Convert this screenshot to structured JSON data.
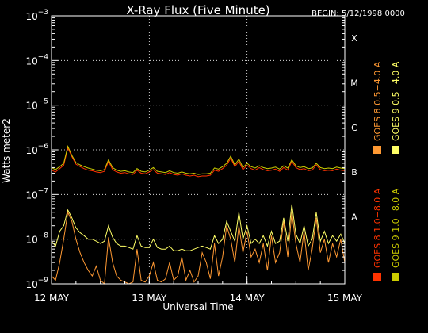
{
  "chart_data": {
    "type": "line",
    "title": "X-Ray Flux (Five Minute)",
    "begin_label": "BEGIN: 5/12/1998 0000",
    "ylabel": "Watts meter2",
    "xlabel": "Universal Time",
    "y_scale": "log",
    "ylim": [
      1e-09,
      0.001
    ],
    "y_ticks": [
      {
        "base": "10",
        "exp": "−3",
        "value": 0.001
      },
      {
        "base": "10",
        "exp": "−4",
        "value": 0.0001
      },
      {
        "base": "10",
        "exp": "−5",
        "value": 1e-05
      },
      {
        "base": "10",
        "exp": "−6",
        "value": 1e-06
      },
      {
        "base": "10",
        "exp": "−7",
        "value": 1e-07
      },
      {
        "base": "10",
        "exp": "−8",
        "value": 1e-08
      },
      {
        "base": "10",
        "exp": "−9",
        "value": 1e-09
      }
    ],
    "xlim": [
      0,
      72
    ],
    "x_unit": "hours since 12 May 1998 00:00",
    "x_ticks": [
      {
        "label": "12 MAY",
        "value": 0
      },
      {
        "label": "13 MAY",
        "value": 24
      },
      {
        "label": "14 MAY",
        "value": 48
      },
      {
        "label": "15 MAY",
        "value": 72
      }
    ],
    "flare_classes": [
      {
        "label": "X",
        "value": 0.0001
      },
      {
        "label": "M",
        "value": 1e-05
      },
      {
        "label": "C",
        "value": 1e-06
      },
      {
        "label": "B",
        "value": 1e-07
      },
      {
        "label": "A",
        "value": 1e-08
      }
    ],
    "grid": true,
    "legend_position": "right (vertical)",
    "series": [
      {
        "name": "GOES 8 1.0−8.0 A",
        "color": "#ff3300",
        "x": [
          0,
          1,
          2,
          3,
          4,
          5,
          6,
          7,
          8,
          9,
          10,
          11,
          12,
          13,
          14,
          15,
          16,
          17,
          18,
          19,
          20,
          21,
          22,
          23,
          24,
          25,
          26,
          27,
          28,
          29,
          30,
          31,
          32,
          33,
          34,
          35,
          36,
          37,
          38,
          39,
          40,
          41,
          42,
          43,
          44,
          45,
          46,
          47,
          48,
          49,
          50,
          51,
          52,
          53,
          54,
          55,
          56,
          57,
          58,
          59,
          60,
          61,
          62,
          63,
          64,
          65,
          66,
          67,
          68,
          69,
          70,
          71,
          72
        ],
        "y": [
          3.5e-07,
          3.2e-07,
          3.8e-07,
          4.5e-07,
          1.1e-06,
          7e-07,
          4.8e-07,
          4.2e-07,
          3.8e-07,
          3.5e-07,
          3.4e-07,
          3.2e-07,
          3.1e-07,
          3.3e-07,
          5.5e-07,
          3.6e-07,
          3.2e-07,
          3e-07,
          3.1e-07,
          2.9e-07,
          2.8e-07,
          3.5e-07,
          3e-07,
          2.9e-07,
          3.2e-07,
          3.6e-07,
          3e-07,
          2.9e-07,
          2.8e-07,
          3.1e-07,
          2.8e-07,
          2.7e-07,
          2.9e-07,
          2.7e-07,
          2.6e-07,
          2.7e-07,
          2.5e-07,
          2.6e-07,
          2.6e-07,
          2.7e-07,
          3.5e-07,
          3.3e-07,
          3.8e-07,
          4.5e-07,
          6.5e-07,
          4.2e-07,
          5.5e-07,
          3.6e-07,
          4.5e-07,
          3.8e-07,
          3.5e-07,
          4e-07,
          3.6e-07,
          3.4e-07,
          3.5e-07,
          3.7e-07,
          3.3e-07,
          4e-07,
          3.5e-07,
          5.5e-07,
          4e-07,
          3.6e-07,
          3.8e-07,
          3.4e-07,
          3.5e-07,
          4.6e-07,
          3.6e-07,
          3.4e-07,
          3.5e-07,
          3.4e-07,
          3.7e-07,
          3.5e-07,
          3.4e-07
        ]
      },
      {
        "name": "GOES 8 0.5−4.0 A",
        "color": "#ff9933",
        "x": [
          0,
          1,
          2,
          3,
          4,
          5,
          6,
          7,
          8,
          9,
          10,
          11,
          12,
          13,
          14,
          15,
          16,
          17,
          18,
          19,
          20,
          21,
          22,
          23,
          24,
          25,
          26,
          27,
          28,
          29,
          30,
          31,
          32,
          33,
          34,
          35,
          36,
          37,
          38,
          39,
          40,
          41,
          42,
          43,
          44,
          45,
          46,
          47,
          48,
          49,
          50,
          51,
          52,
          53,
          54,
          55,
          56,
          57,
          58,
          59,
          60,
          61,
          62,
          63,
          64,
          65,
          66,
          67,
          68,
          69,
          70,
          71,
          72
        ],
        "y": [
          1.5e-09,
          1.2e-09,
          3e-09,
          1e-08,
          4e-08,
          2.5e-08,
          1e-08,
          5e-09,
          3e-09,
          2e-09,
          1.5e-09,
          2.5e-09,
          1.2e-09,
          1e-09,
          1.1e-08,
          3e-09,
          1.5e-09,
          1.2e-09,
          1.1e-09,
          1e-09,
          1.1e-09,
          6e-09,
          1.2e-09,
          1.1e-09,
          1.5e-09,
          3e-09,
          1.2e-09,
          1.1e-09,
          1.3e-09,
          3e-09,
          1.2e-09,
          1.5e-09,
          4e-09,
          1.2e-09,
          2e-09,
          1.1e-09,
          1.5e-09,
          5e-09,
          3e-09,
          1.3e-09,
          8e-09,
          1.5e-09,
          4e-09,
          2e-08,
          1e-08,
          3e-09,
          2e-08,
          5e-09,
          1.5e-08,
          4e-09,
          6e-09,
          3e-09,
          8e-09,
          2e-09,
          1.2e-08,
          3e-09,
          5e-09,
          2.5e-08,
          4e-09,
          4e-08,
          8e-09,
          3e-09,
          1.5e-08,
          2e-09,
          6e-09,
          3e-08,
          5e-09,
          1e-08,
          3e-09,
          8e-09,
          4e-09,
          1e-08,
          3e-09
        ]
      },
      {
        "name": "GOES 9 0.5−4.0 A",
        "color": "#ffff66",
        "x": [
          0,
          1,
          2,
          3,
          4,
          5,
          6,
          7,
          8,
          9,
          10,
          11,
          12,
          13,
          14,
          15,
          16,
          17,
          18,
          19,
          20,
          21,
          22,
          23,
          24,
          25,
          26,
          27,
          28,
          29,
          30,
          31,
          32,
          33,
          34,
          35,
          36,
          37,
          38,
          39,
          40,
          41,
          42,
          43,
          44,
          45,
          46,
          47,
          48,
          49,
          50,
          51,
          52,
          53,
          54,
          55,
          56,
          57,
          58,
          59,
          60,
          61,
          62,
          63,
          64,
          65,
          66,
          67,
          68,
          69,
          70,
          71,
          72
        ],
        "y": [
          9e-09,
          7e-09,
          1.5e-08,
          2e-08,
          4.5e-08,
          3e-08,
          1.8e-08,
          1.4e-08,
          1.2e-08,
          1e-08,
          1e-08,
          9e-09,
          8e-09,
          9e-09,
          2e-08,
          1.1e-08,
          8e-09,
          7e-09,
          7e-09,
          6.5e-09,
          6e-09,
          1.2e-08,
          7e-09,
          6.5e-09,
          6.5e-09,
          1e-08,
          6.5e-09,
          6e-09,
          6e-09,
          7e-09,
          5.5e-09,
          5.5e-09,
          6e-09,
          5.5e-09,
          5.5e-09,
          6e-09,
          6.5e-09,
          7e-09,
          6.5e-09,
          6e-09,
          1.2e-08,
          8e-09,
          1e-08,
          2.5e-08,
          1.5e-08,
          9e-09,
          4e-08,
          1e-08,
          2e-08,
          8e-09,
          1e-08,
          8e-09,
          1.2e-08,
          7e-09,
          1.5e-08,
          8e-09,
          9e-09,
          3e-08,
          9e-09,
          6e-08,
          1.3e-08,
          8e-09,
          2e-08,
          7e-09,
          1e-08,
          4e-08,
          9e-09,
          1.5e-08,
          8e-09,
          1.2e-08,
          9e-09,
          1.3e-08,
          8e-09
        ]
      },
      {
        "name": "GOES 9 1.0−8.0 A",
        "color": "#cccc00",
        "x": [
          0,
          1,
          2,
          3,
          4,
          5,
          6,
          7,
          8,
          9,
          10,
          11,
          12,
          13,
          14,
          15,
          16,
          17,
          18,
          19,
          20,
          21,
          22,
          23,
          24,
          25,
          26,
          27,
          28,
          29,
          30,
          31,
          32,
          33,
          34,
          35,
          36,
          37,
          38,
          39,
          40,
          41,
          42,
          43,
          44,
          45,
          46,
          47,
          48,
          49,
          50,
          51,
          52,
          53,
          54,
          55,
          56,
          57,
          58,
          59,
          60,
          61,
          62,
          63,
          64,
          65,
          66,
          67,
          68,
          69,
          70,
          71,
          72
        ],
        "y": [
          4e-07,
          3.6e-07,
          4.2e-07,
          5e-07,
          1.2e-06,
          7.5e-07,
          5.2e-07,
          4.6e-07,
          4.2e-07,
          3.9e-07,
          3.7e-07,
          3.5e-07,
          3.4e-07,
          3.6e-07,
          6e-07,
          4e-07,
          3.5e-07,
          3.3e-07,
          3.4e-07,
          3.2e-07,
          3.1e-07,
          3.8e-07,
          3.3e-07,
          3.2e-07,
          3.5e-07,
          4e-07,
          3.3e-07,
          3.2e-07,
          3.1e-07,
          3.4e-07,
          3.1e-07,
          3e-07,
          3.2e-07,
          3e-07,
          2.9e-07,
          3e-07,
          2.8e-07,
          2.9e-07,
          2.9e-07,
          3e-07,
          3.9e-07,
          3.7e-07,
          4.2e-07,
          5e-07,
          7.2e-07,
          4.6e-07,
          6.2e-07,
          4e-07,
          5e-07,
          4.2e-07,
          3.9e-07,
          4.4e-07,
          4e-07,
          3.8e-07,
          3.9e-07,
          4.1e-07,
          3.7e-07,
          4.4e-07,
          3.9e-07,
          6e-07,
          4.4e-07,
          4e-07,
          4.2e-07,
          3.8e-07,
          3.9e-07,
          5e-07,
          4e-07,
          3.8e-07,
          3.9e-07,
          3.8e-07,
          4.1e-07,
          3.9e-07,
          3.8e-07
        ]
      }
    ]
  }
}
